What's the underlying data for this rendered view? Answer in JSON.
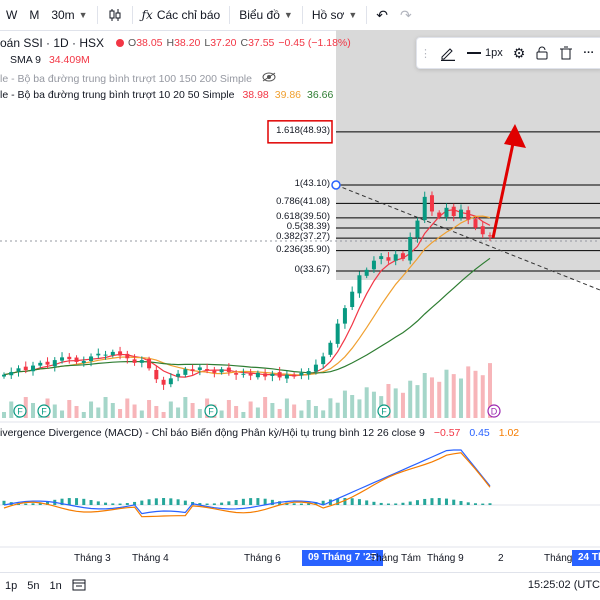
{
  "toolbar": {
    "interval_items": [
      "W",
      "M",
      "30m"
    ],
    "indicators_label": "Các chỉ báo",
    "chart_type_label": "Biểu đồ",
    "profile_label": "Hồ sơ"
  },
  "legend": {
    "symbol": "oán SSI · 1D · HSX",
    "open_label": "O",
    "open": "38.05",
    "high_label": "H",
    "high": "38.20",
    "low_label": "L",
    "low": "37.20",
    "close_label": "C",
    "close": "37.55",
    "change": "−0.45 (−1.18%)",
    "sma_label": "SMA 9",
    "sma_value": "34.409M",
    "ma_set1": "le - Bộ ba đường trung bình trượt 100 150 200 Simple",
    "ma_set2": "le - Bộ ba đường trung bình trượt 10 20 50 Simple",
    "ma_set2_values": [
      "38.98",
      "39.86",
      "36.66"
    ],
    "macd_title": "ivergence Divergence (MACD) - Chỉ báo Biến động Phân kỳ/Hội tụ trung bình 12 26 close 9",
    "macd_values": [
      "−0.57",
      "0.45",
      "1.02"
    ]
  },
  "drawing_toolbar": {
    "width_label": "1px"
  },
  "x_axis": {
    "labels": [
      "Tháng 3",
      "Tháng 4",
      "Tháng 6",
      "Tháng Tám",
      "Tháng 9",
      "2",
      "Tháng"
    ],
    "highlight_left": "09 Tháng 7 '25",
    "highlight_right": "24 Thá"
  },
  "bottom": {
    "ranges": [
      "1p",
      "5n",
      "1n"
    ],
    "time": "15:25:02 (UTC"
  },
  "colors": {
    "up": "#089981",
    "down": "#f23645",
    "accent": "#2962ff",
    "ma_fast": "#f0a030",
    "ma_slow": "#2e7d32",
    "arrow": "#e00000",
    "fib_zone": "#d9d9d9",
    "macd_line": "#2962ff",
    "signal_line": "#f57c00"
  },
  "chart_data": {
    "type": "candlestick",
    "fib_levels": [
      {
        "ratio": "1.618",
        "price": 48.93,
        "label": "1.618(48.93)"
      },
      {
        "ratio": "1",
        "price": 43.1,
        "label": "1(43.10)"
      },
      {
        "ratio": "0.786",
        "price": 41.08,
        "label": "0.786(41.08)"
      },
      {
        "ratio": "0.618",
        "price": 39.5,
        "label": "0.618(39.50)"
      },
      {
        "ratio": "0.5",
        "price": 38.39,
        "label": "0.5(38.39)"
      },
      {
        "ratio": "0.382",
        "price": 37.27,
        "label": "0.382(37.27)"
      },
      {
        "ratio": "0.236",
        "price": 35.9,
        "label": "0.236(35.90)"
      },
      {
        "ratio": "0",
        "price": 33.67,
        "label": "0(33.67)"
      }
    ],
    "closes": [
      22.3,
      22.6,
      23.0,
      22.8,
      23.3,
      23.6,
      23.4,
      23.9,
      24.2,
      24.0,
      23.7,
      23.8,
      24.3,
      24.6,
      24.5,
      24.8,
      24.4,
      24.1,
      23.6,
      23.9,
      23.0,
      21.8,
      21.2,
      21.9,
      22.4,
      22.9,
      22.7,
      23.1,
      22.8,
      22.5,
      22.9,
      22.6,
      22.3,
      22.4,
      22.2,
      22.5,
      22.1,
      22.4,
      22.0,
      22.3,
      22.1,
      22.5,
      22.7,
      23.4,
      24.3,
      25.8,
      27.9,
      29.6,
      31.4,
      33.2,
      33.8,
      34.8,
      35.3,
      34.8,
      35.5,
      35.0,
      37.4,
      39.2,
      41.8,
      40.2,
      39.6,
      40.6,
      39.7,
      40.4,
      39.3,
      38.4,
      37.7,
      37.55
    ]
  }
}
